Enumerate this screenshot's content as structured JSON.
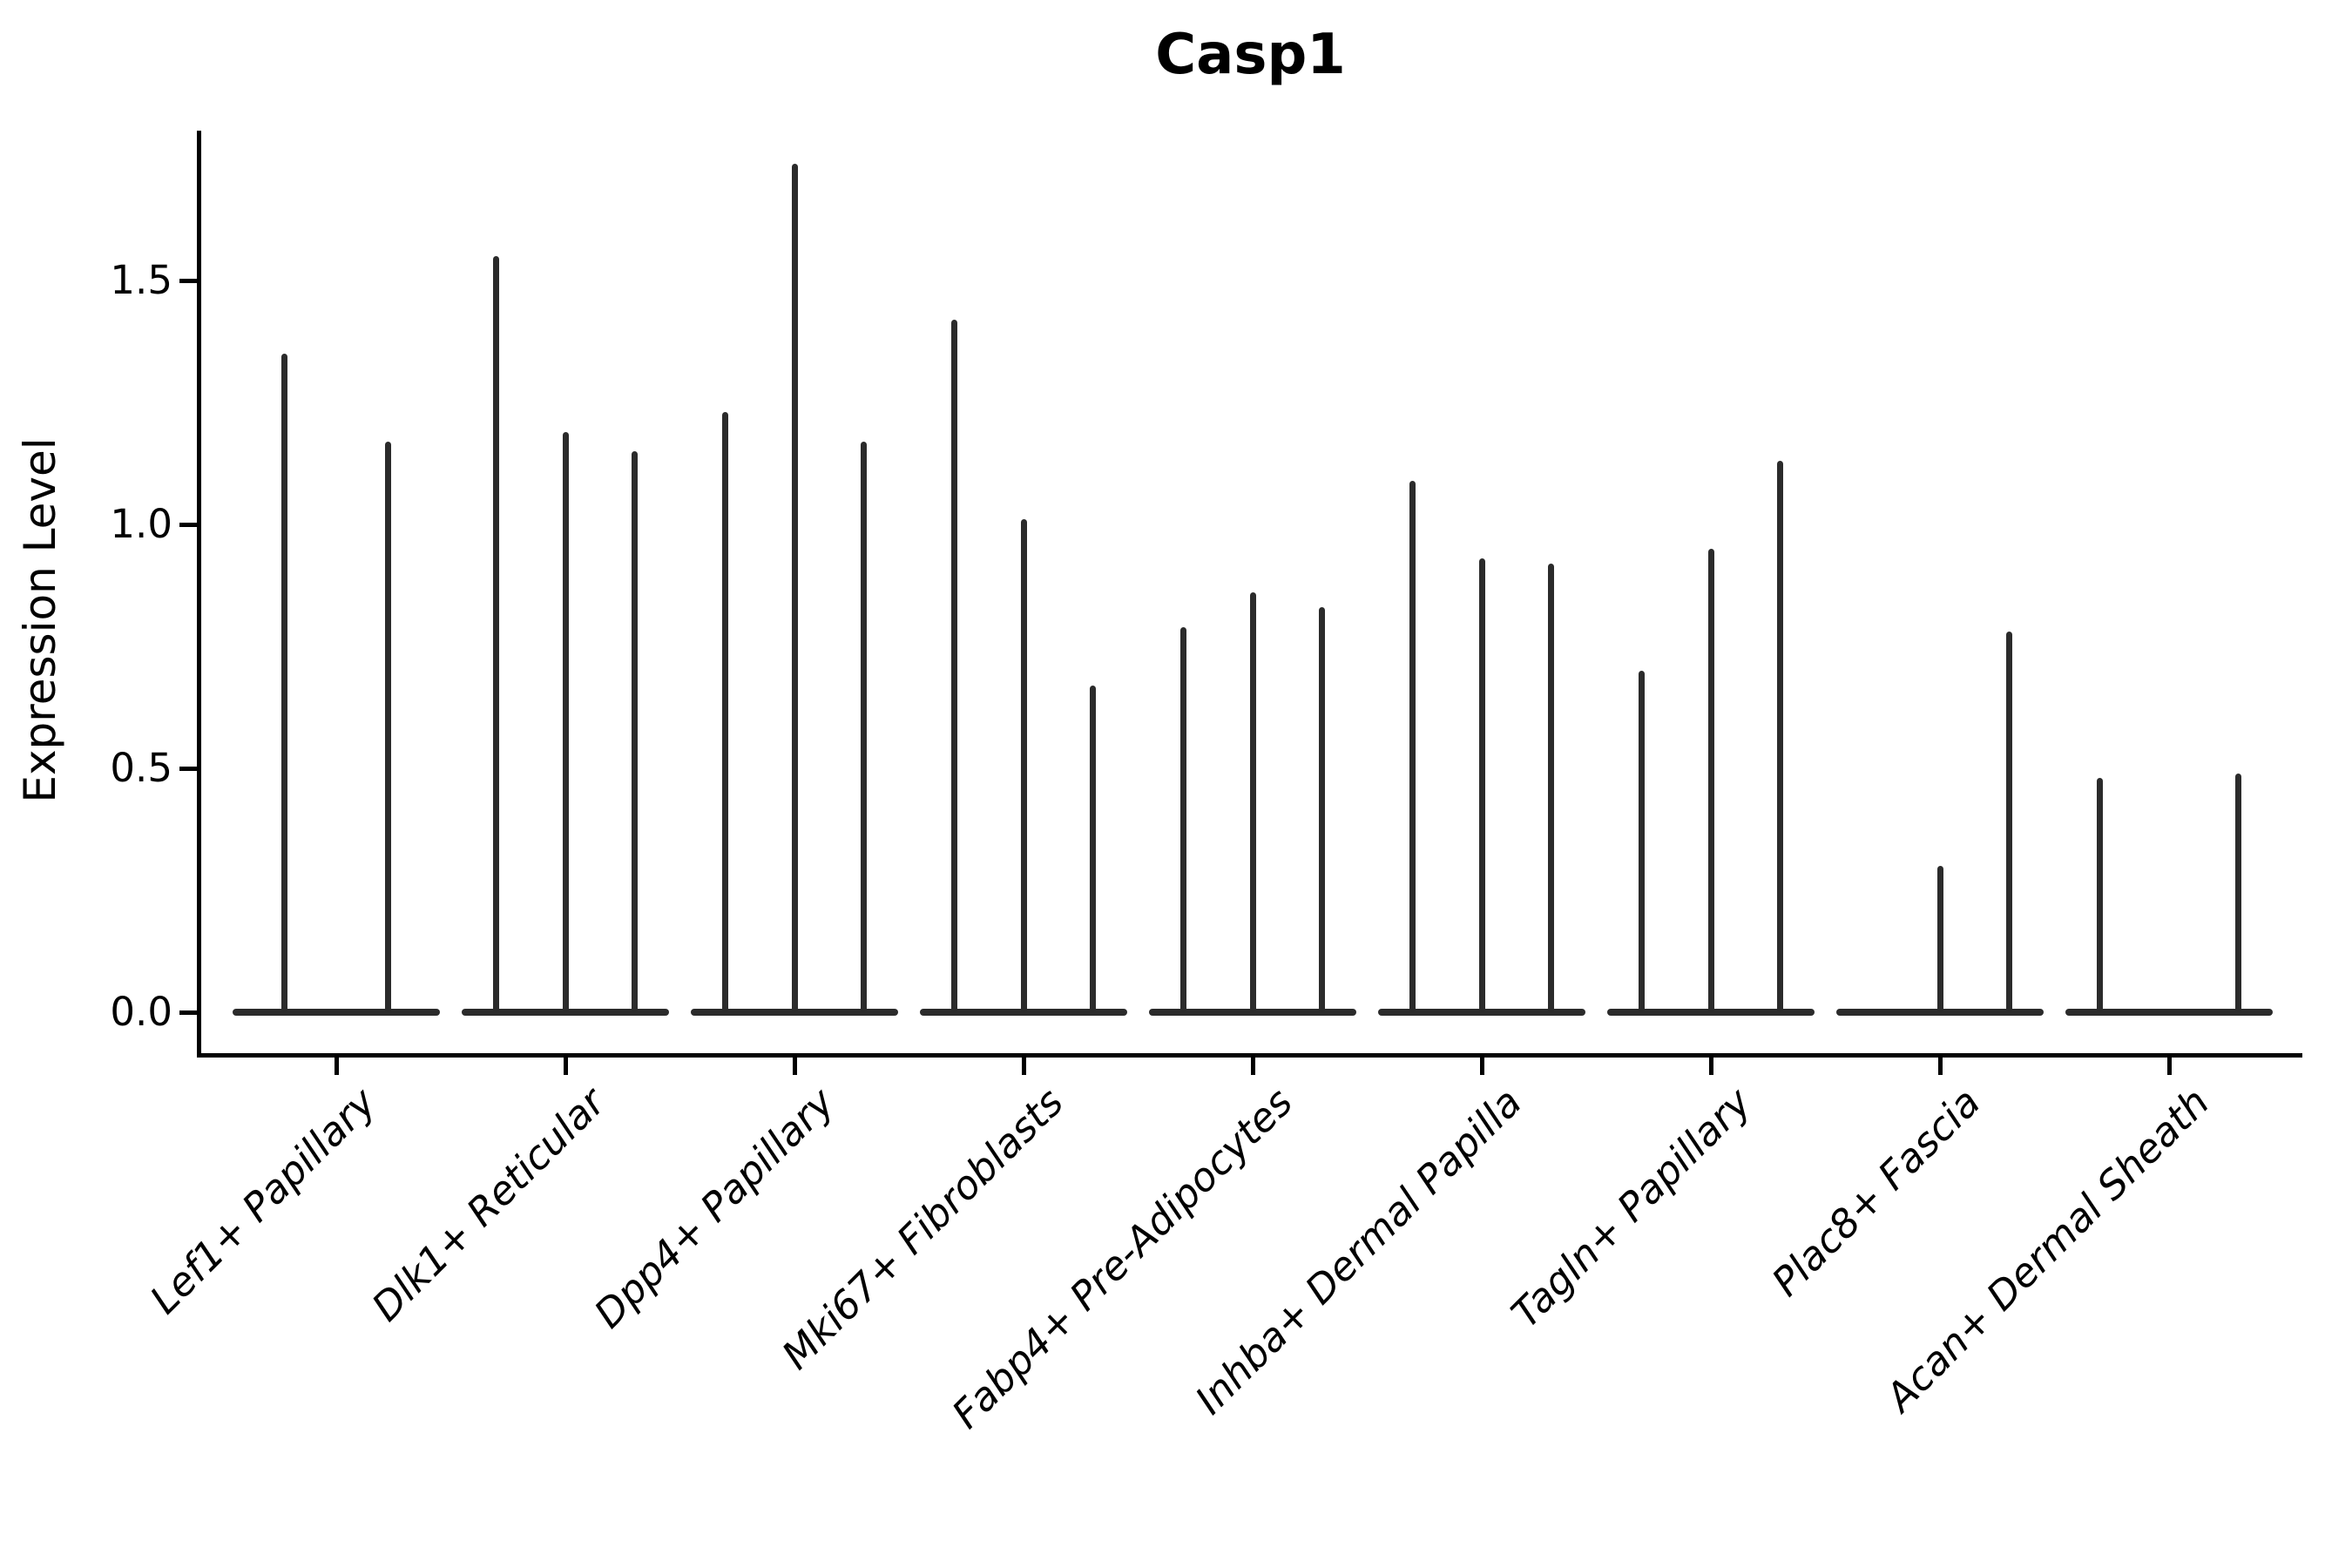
{
  "chart_data": {
    "type": "violin",
    "title": "Casp1",
    "xlabel": "",
    "ylabel": "Expression Level",
    "ylim": [
      0,
      1.81
    ],
    "yticks": [
      0.0,
      0.5,
      1.0,
      1.5
    ],
    "ytick_labels": [
      "0.0",
      "0.5",
      "1.0",
      "1.5"
    ],
    "legend": "none",
    "grid": false,
    "description": "Violin plot of Casp1 expression; each cell-type group contains 2-3 very thin violins (flat at 0 with a single spike up to the max expression). A value of 0 means a flat violin with no spike.",
    "categories": [
      "Lef1+ Papillary",
      "Dlk1+ Reticular",
      "Dpp4+ Papillary",
      "Mki67+ Fibroblasts",
      "Fabp4+ Pre-Adipocytes",
      "Inhba+ Dermal Papilla",
      "Tagln+ Papillary",
      "Plac8+ Fascia",
      "Acan+ Dermal Sheath"
    ],
    "groups": [
      {
        "label": "Lef1+ Papillary",
        "spike_values": [
          1.35,
          1.17
        ]
      },
      {
        "label": "Dlk1+ Reticular",
        "spike_values": [
          1.55,
          1.19,
          1.15
        ]
      },
      {
        "label": "Dpp4+ Papillary",
        "spike_values": [
          1.23,
          1.74,
          1.17
        ]
      },
      {
        "label": "Mki67+ Fibroblasts",
        "spike_values": [
          1.42,
          1.01,
          0.67
        ]
      },
      {
        "label": "Fabp4+ Pre-Adipocytes",
        "spike_values": [
          0.79,
          0.86,
          0.83
        ]
      },
      {
        "label": "Inhba+ Dermal Papilla",
        "spike_values": [
          1.09,
          0.93,
          0.92
        ]
      },
      {
        "label": "Tagln+ Papillary",
        "spike_values": [
          0.7,
          0.95,
          1.13
        ]
      },
      {
        "label": "Plac8+ Fascia",
        "spike_values": [
          0.0,
          0.3,
          0.78
        ]
      },
      {
        "label": "Acan+ Dermal Sheath",
        "spike_values": [
          0.48,
          0.0,
          0.49
        ]
      }
    ]
  }
}
